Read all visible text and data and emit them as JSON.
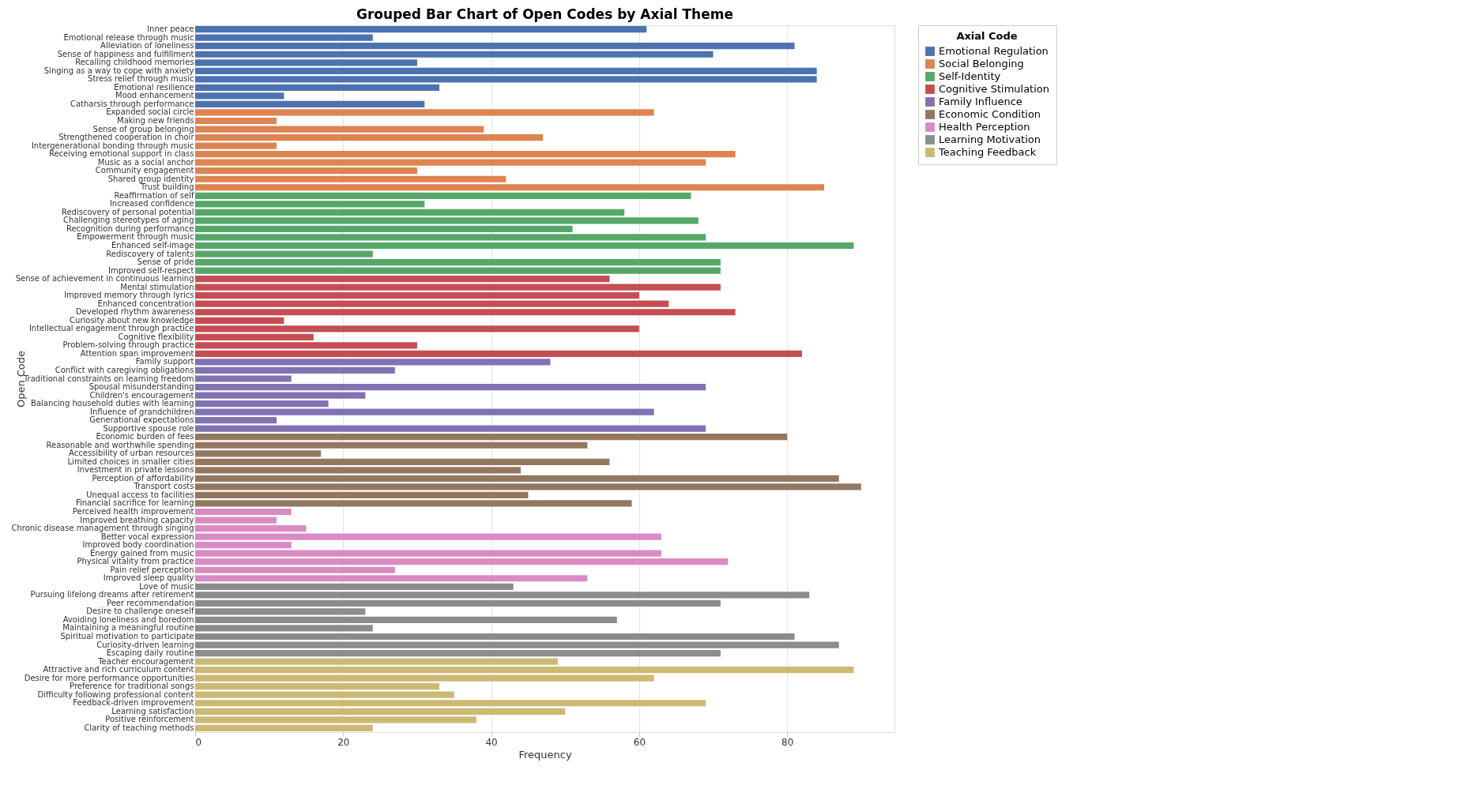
{
  "chart_data": {
    "type": "bar",
    "orientation": "horizontal",
    "title": "Grouped Bar Chart of Open Codes by Axial Theme",
    "xlabel": "Frequency",
    "ylabel": "Open Code",
    "legend_title": "Axial Code",
    "legend": "top right",
    "grid": "x",
    "xlim": [
      0,
      94.5
    ],
    "xticks": [
      0,
      20,
      40,
      60,
      80
    ],
    "categories": [
      "Inner peace",
      "Emotional release through music",
      "Alleviation of loneliness",
      "Sense of happiness and fulfillment",
      "Recalling childhood memories",
      "Singing as a way to cope with anxiety",
      "Stress relief through music",
      "Emotional resilience",
      "Mood enhancement",
      "Catharsis through performance",
      "Expanded social circle",
      "Making new friends",
      "Sense of group belonging",
      "Strengthened cooperation in choir",
      "Intergenerational bonding through music",
      "Receiving emotional support in class",
      "Music as a social anchor",
      "Community engagement",
      "Shared group identity",
      "Trust building",
      "Reaffirmation of self",
      "Increased confidence",
      "Rediscovery of personal potential",
      "Challenging stereotypes of aging",
      "Recognition during performance",
      "Empowerment through music",
      "Enhanced self-image",
      "Rediscovery of talents",
      "Sense of pride",
      "Improved self-respect",
      "Sense of achievement in continuous learning",
      "Mental stimulation",
      "Improved memory through lyrics",
      "Enhanced concentration",
      "Developed rhythm awareness",
      "Curiosity about new knowledge",
      "Intellectual engagement through practice",
      "Cognitive flexibility",
      "Problem-solving through practice",
      "Attention span improvement",
      "Family support",
      "Conflict with caregiving obligations",
      "Traditional constraints on learning freedom",
      "Spousal misunderstanding",
      "Children's encouragement",
      "Balancing household duties with learning",
      "Influence of grandchildren",
      "Generational expectations",
      "Supportive spouse role",
      "Economic burden of fees",
      "Reasonable and worthwhile spending",
      "Accessibility of urban resources",
      "Limited choices in smaller cities",
      "Investment in private lessons",
      "Perception of affordability",
      "Transport costs",
      "Unequal access to facilities",
      "Financial sacrifice for learning",
      "Perceived health improvement",
      "Improved breathing capacity",
      "Chronic disease management through singing",
      "Better vocal expression",
      "Improved body coordination",
      "Energy gained from music",
      "Physical vitality from practice",
      "Pain relief perception",
      "Improved sleep quality",
      "Love of music",
      "Pursuing lifelong dreams after retirement",
      "Peer recommendation",
      "Desire to challenge oneself",
      "Avoiding loneliness and boredom",
      "Maintaining a meaningful routine",
      "Spiritual motivation to participate",
      "Curiosity-driven learning",
      "Escaping daily routine",
      "Teacher encouragement",
      "Attractive and rich curriculum content",
      "Desire for more performance opportunities",
      "Preference for traditional songs",
      "Difficulty following professional content",
      "Feedback-driven improvement",
      "Learning satisfaction",
      "Positive reinforcement",
      "Clarity of teaching methods"
    ],
    "series": [
      {
        "name": "Emotional Regulation",
        "color": "#4c72b0",
        "values": [
          61,
          24,
          81,
          70,
          30,
          84,
          84,
          33,
          12,
          31,
          null,
          null,
          null,
          null,
          null,
          null,
          null,
          null,
          null,
          null,
          null,
          null,
          null,
          null,
          null,
          null,
          null,
          null,
          null,
          null,
          null,
          null,
          null,
          null,
          null,
          null,
          null,
          null,
          null,
          null,
          null,
          null,
          null,
          null,
          null,
          null,
          null,
          null,
          null,
          null,
          null,
          null,
          null,
          null,
          null,
          null,
          null,
          null,
          null,
          null,
          null,
          null,
          null,
          null,
          null,
          null,
          null,
          null,
          null,
          null,
          null,
          null,
          null,
          null,
          null,
          null,
          null,
          null,
          null,
          null,
          null,
          null,
          null,
          null,
          null
        ]
      },
      {
        "name": "Social Belonging",
        "color": "#dd8452",
        "values": [
          null,
          null,
          null,
          null,
          null,
          null,
          null,
          null,
          null,
          null,
          62,
          11,
          39,
          47,
          11,
          73,
          69,
          30,
          42,
          85,
          null,
          null,
          null,
          null,
          null,
          null,
          null,
          null,
          null,
          null,
          null,
          null,
          null,
          null,
          null,
          null,
          null,
          null,
          null,
          null,
          null,
          null,
          null,
          null,
          null,
          null,
          null,
          null,
          null,
          null,
          null,
          null,
          null,
          null,
          null,
          null,
          null,
          null,
          null,
          null,
          null,
          null,
          null,
          null,
          null,
          null,
          null,
          null,
          null,
          null,
          null,
          null,
          null,
          null,
          null,
          null,
          null,
          null,
          null,
          null,
          null,
          null,
          null,
          null,
          null
        ]
      },
      {
        "name": "Self-Identity",
        "color": "#55a868",
        "values": [
          null,
          null,
          null,
          null,
          null,
          null,
          null,
          null,
          null,
          null,
          null,
          null,
          null,
          null,
          null,
          null,
          null,
          null,
          null,
          null,
          67,
          31,
          58,
          68,
          51,
          69,
          89,
          24,
          71,
          71,
          null,
          null,
          null,
          null,
          null,
          null,
          null,
          null,
          null,
          null,
          null,
          null,
          null,
          null,
          null,
          null,
          null,
          null,
          null,
          null,
          null,
          null,
          null,
          null,
          null,
          null,
          null,
          null,
          null,
          null,
          null,
          null,
          null,
          null,
          null,
          null,
          null,
          null,
          null,
          null,
          null,
          null,
          null,
          null,
          null,
          null,
          null,
          null,
          null,
          null,
          null,
          null,
          null,
          null,
          null
        ]
      },
      {
        "name": "Cognitive Stimulation",
        "color": "#c44e52",
        "values": [
          null,
          null,
          null,
          null,
          null,
          null,
          null,
          null,
          null,
          null,
          null,
          null,
          null,
          null,
          null,
          null,
          null,
          null,
          null,
          null,
          null,
          null,
          null,
          null,
          null,
          null,
          null,
          null,
          null,
          null,
          56,
          71,
          60,
          64,
          73,
          12,
          60,
          16,
          30,
          82,
          null,
          null,
          null,
          null,
          null,
          null,
          null,
          null,
          null,
          null,
          null,
          null,
          null,
          null,
          null,
          null,
          null,
          null,
          null,
          null,
          null,
          null,
          null,
          null,
          null,
          null,
          null,
          null,
          null,
          null,
          null,
          null,
          null,
          null,
          null,
          null,
          null,
          null,
          null,
          null,
          null,
          null,
          null,
          null,
          null
        ]
      },
      {
        "name": "Family Influence",
        "color": "#8172b3",
        "values": [
          null,
          null,
          null,
          null,
          null,
          null,
          null,
          null,
          null,
          null,
          null,
          null,
          null,
          null,
          null,
          null,
          null,
          null,
          null,
          null,
          null,
          null,
          null,
          null,
          null,
          null,
          null,
          null,
          null,
          null,
          null,
          null,
          null,
          null,
          null,
          null,
          null,
          null,
          null,
          null,
          48,
          27,
          13,
          69,
          23,
          18,
          62,
          11,
          69,
          null,
          null,
          null,
          null,
          null,
          null,
          null,
          null,
          null,
          null,
          null,
          null,
          null,
          null,
          null,
          null,
          null,
          null,
          null,
          null,
          null,
          null,
          null,
          null,
          null,
          null,
          null,
          null,
          null,
          null,
          null,
          null,
          null,
          null,
          null,
          null
        ]
      },
      {
        "name": "Economic Condition",
        "color": "#937860",
        "values": [
          null,
          null,
          null,
          null,
          null,
          null,
          null,
          null,
          null,
          null,
          null,
          null,
          null,
          null,
          null,
          null,
          null,
          null,
          null,
          null,
          null,
          null,
          null,
          null,
          null,
          null,
          null,
          null,
          null,
          null,
          null,
          null,
          null,
          null,
          null,
          null,
          null,
          null,
          null,
          null,
          null,
          null,
          null,
          null,
          null,
          null,
          null,
          null,
          null,
          80,
          53,
          17,
          56,
          44,
          87,
          90,
          45,
          59,
          null,
          null,
          null,
          null,
          null,
          null,
          null,
          null,
          null,
          null,
          null,
          null,
          null,
          null,
          null,
          null,
          null,
          null,
          null,
          null,
          null,
          null,
          null,
          null,
          null,
          null,
          null
        ]
      },
      {
        "name": "Health Perception",
        "color": "#da8bc3",
        "values": [
          null,
          null,
          null,
          null,
          null,
          null,
          null,
          null,
          null,
          null,
          null,
          null,
          null,
          null,
          null,
          null,
          null,
          null,
          null,
          null,
          null,
          null,
          null,
          null,
          null,
          null,
          null,
          null,
          null,
          null,
          null,
          null,
          null,
          null,
          null,
          null,
          null,
          null,
          null,
          null,
          null,
          null,
          null,
          null,
          null,
          null,
          null,
          null,
          null,
          null,
          null,
          null,
          null,
          null,
          null,
          null,
          null,
          null,
          13,
          11,
          15,
          63,
          13,
          63,
          72,
          27,
          53,
          null,
          null,
          null,
          null,
          null,
          null,
          null,
          null,
          null,
          null,
          null,
          null,
          null,
          null,
          null,
          null,
          null,
          null
        ]
      },
      {
        "name": "Learning Motivation",
        "color": "#8c8c8c",
        "values": [
          null,
          null,
          null,
          null,
          null,
          null,
          null,
          null,
          null,
          null,
          null,
          null,
          null,
          null,
          null,
          null,
          null,
          null,
          null,
          null,
          null,
          null,
          null,
          null,
          null,
          null,
          null,
          null,
          null,
          null,
          null,
          null,
          null,
          null,
          null,
          null,
          null,
          null,
          null,
          null,
          null,
          null,
          null,
          null,
          null,
          null,
          null,
          null,
          null,
          null,
          null,
          null,
          null,
          null,
          null,
          null,
          null,
          null,
          null,
          null,
          null,
          null,
          null,
          null,
          null,
          null,
          null,
          43,
          83,
          71,
          23,
          57,
          24,
          81,
          87,
          71,
          null,
          null,
          null,
          null,
          null,
          null,
          null,
          null,
          null
        ]
      },
      {
        "name": "Teaching Feedback",
        "color": "#ccb974",
        "values": [
          null,
          null,
          null,
          null,
          null,
          null,
          null,
          null,
          null,
          null,
          null,
          null,
          null,
          null,
          null,
          null,
          null,
          null,
          null,
          null,
          null,
          null,
          null,
          null,
          null,
          null,
          null,
          null,
          null,
          null,
          null,
          null,
          null,
          null,
          null,
          null,
          null,
          null,
          null,
          null,
          null,
          null,
          null,
          null,
          null,
          null,
          null,
          null,
          null,
          null,
          null,
          null,
          null,
          null,
          null,
          null,
          null,
          null,
          null,
          null,
          null,
          null,
          null,
          null,
          null,
          null,
          null,
          null,
          null,
          null,
          null,
          null,
          null,
          null,
          null,
          null,
          49,
          89,
          62,
          33,
          35,
          69,
          50,
          38,
          24
        ]
      }
    ]
  }
}
